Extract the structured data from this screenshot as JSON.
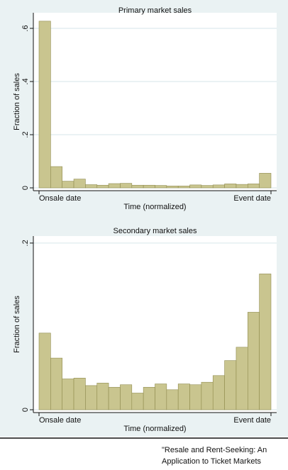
{
  "chart_data": [
    {
      "type": "histogram",
      "title": "Primary market sales",
      "xlabel": "Time (normalized)",
      "ylabel": "Fraction of sales",
      "bins": [
        0,
        0.05,
        0.1,
        0.15,
        0.2,
        0.25,
        0.3,
        0.35,
        0.4,
        0.45,
        0.5,
        0.55,
        0.6,
        0.65,
        0.7,
        0.75,
        0.8,
        0.85,
        0.9,
        0.95,
        1
      ],
      "values": [
        0.627,
        0.08,
        0.025,
        0.033,
        0.012,
        0.01,
        0.016,
        0.017,
        0.01,
        0.01,
        0.009,
        0.007,
        0.007,
        0.011,
        0.009,
        0.011,
        0.015,
        0.013,
        0.015,
        0.055
      ],
      "color": "#c9c58f",
      "edgecolor": "#8f8b4e",
      "xlim": [
        0,
        1
      ],
      "xticks": [
        {
          "value": 0,
          "label": "Onsale date"
        },
        {
          "value": 1,
          "label": "Event date"
        }
      ],
      "ylim": [
        0,
        0.648
      ],
      "yticks": [
        0,
        {
          "value": 0.2,
          "label": ".2"
        },
        {
          "value": 0.4,
          "label": ".4"
        },
        {
          "value": 0.6,
          "label": ".6"
        }
      ],
      "grid": true
    },
    {
      "type": "histogram",
      "title": "Secondary market sales",
      "xlabel": "Time (normalized)",
      "ylabel": "Fraction of sales",
      "bins": [
        0,
        0.05,
        0.1,
        0.15,
        0.2,
        0.25,
        0.3,
        0.35,
        0.4,
        0.45,
        0.5,
        0.55,
        0.6,
        0.65,
        0.7,
        0.75,
        0.8,
        0.85,
        0.9,
        0.95,
        1
      ],
      "values": [
        0.092,
        0.062,
        0.037,
        0.038,
        0.029,
        0.032,
        0.027,
        0.03,
        0.02,
        0.027,
        0.031,
        0.024,
        0.031,
        0.03,
        0.033,
        0.041,
        0.059,
        0.075,
        0.117,
        0.163
      ],
      "color": "#c9c58f",
      "edgecolor": "#8f8b4e",
      "xlim": [
        0,
        1
      ],
      "xticks": [
        {
          "value": 0,
          "label": "Onsale date"
        },
        {
          "value": 1,
          "label": "Event date"
        }
      ],
      "ylim": [
        0,
        0.205
      ],
      "yticks": [
        0,
        {
          "value": 0.2,
          "label": ".2"
        }
      ],
      "grid": true
    }
  ],
  "caption": [
    "\"Resale and Rent-Seeking: An",
    "Application to Ticket Markets"
  ]
}
